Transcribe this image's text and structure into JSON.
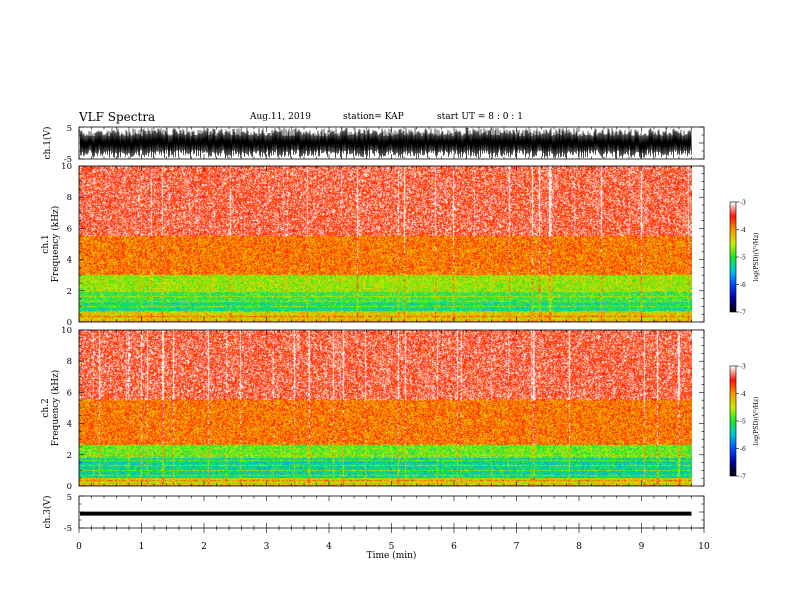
{
  "header": {
    "title": "VLF Spectra",
    "date": "Aug.11, 2019",
    "station": "station= KAP",
    "start_time": "start  UT =   8 : 0  : 1"
  },
  "chart_data": [
    {
      "type": "line",
      "panel": "ch1-waveform",
      "ylabel": "ch.1(V)",
      "yticks": [
        "5",
        "-5"
      ],
      "ylim": [
        -5,
        5
      ],
      "xlim": [
        0,
        10
      ],
      "description_values": "noisy voltage trace spanning roughly -5 to 5 V over 0-9.8 min"
    },
    {
      "type": "heatmap",
      "panel": "ch1-spectrogram",
      "ylabel_top": "ch.1",
      "ylabel": "Frequency (kHz)",
      "yticks": [
        "0",
        "2",
        "4",
        "6",
        "8",
        "10"
      ],
      "ylim": [
        0,
        10
      ],
      "xlim": [
        0,
        10
      ],
      "data_end_min": 9.8,
      "bands_khz": [
        {
          "from": 0,
          "to": 0.6,
          "level": -4.3
        },
        {
          "from": 0.6,
          "to": 1.3,
          "level": -5.2
        },
        {
          "from": 1.3,
          "to": 2.0,
          "level": -5.0
        },
        {
          "from": 2.0,
          "to": 3.0,
          "level": -4.6
        },
        {
          "from": 3.0,
          "to": 5.5,
          "level": -3.9
        },
        {
          "from": 5.5,
          "to": 10,
          "level": -3.4
        }
      ],
      "colorbar": {
        "label": "log(PSD)(V²/Hz)",
        "ticks": [
          "-3",
          "-4",
          "-5",
          "-6",
          "-7"
        ],
        "range": [
          -7,
          -3
        ]
      }
    },
    {
      "type": "heatmap",
      "panel": "ch2-spectrogram",
      "ylabel_top": "ch.2",
      "ylabel": "Frequency (kHz)",
      "yticks": [
        "0",
        "2",
        "4",
        "6",
        "8",
        "10"
      ],
      "ylim": [
        0,
        10
      ],
      "xlim": [
        0,
        10
      ],
      "data_end_min": 9.8,
      "bands_khz": [
        {
          "from": 0,
          "to": 0.5,
          "level": -4.4
        },
        {
          "from": 0.5,
          "to": 1.8,
          "level": -5.3
        },
        {
          "from": 1.8,
          "to": 2.6,
          "level": -4.8
        },
        {
          "from": 2.6,
          "to": 5.5,
          "level": -3.9
        },
        {
          "from": 5.5,
          "to": 10,
          "level": -3.4
        }
      ],
      "colorbar": {
        "label": "log(PSD)(V²/Hz)",
        "ticks": [
          "-3",
          "-4",
          "-5",
          "-6",
          "-7"
        ],
        "range": [
          -7,
          -3
        ]
      }
    },
    {
      "type": "line",
      "panel": "ch3-waveform",
      "ylabel": "ch.3(V)",
      "yticks": [
        "5",
        "-5"
      ],
      "ylim": [
        -5,
        5
      ],
      "xlim": [
        0,
        10
      ],
      "constant_value_v": -0.5,
      "xlabel": "Time (min)",
      "xticks": [
        "0",
        "1",
        "2",
        "3",
        "4",
        "5",
        "6",
        "7",
        "8",
        "9",
        "10"
      ]
    }
  ]
}
